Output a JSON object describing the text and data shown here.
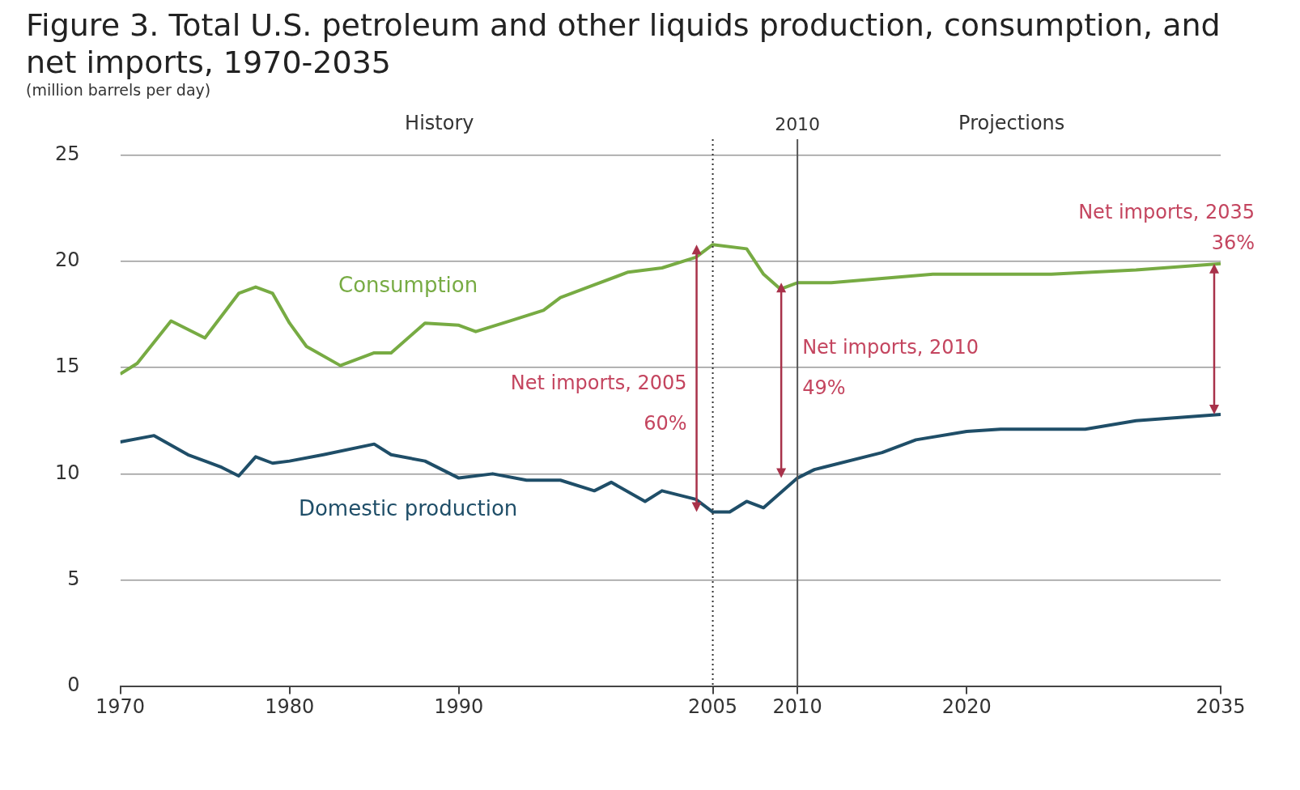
{
  "chart_data": {
    "type": "line",
    "title": "Figure 3. Total U.S. petroleum and other liquids production, consumption, and net imports, 1970-2035",
    "subtitle": "(million barrels per day)",
    "series": [
      {
        "name": "Consumption",
        "color": "#77ab43",
        "x": [
          1970,
          1971,
          1973,
          1975,
          1977,
          1978,
          1979,
          1980,
          1981,
          1983,
          1985,
          1986,
          1988,
          1990,
          1991,
          1993,
          1995,
          1996,
          1998,
          2000,
          2002,
          2004,
          2005,
          2007,
          2008,
          2009,
          2010,
          2012,
          2015,
          2018,
          2025,
          2030,
          2035
        ],
        "values": [
          14.7,
          15.2,
          17.2,
          16.4,
          18.5,
          18.8,
          18.5,
          17.1,
          16.0,
          15.1,
          15.7,
          15.7,
          17.1,
          17.0,
          16.7,
          17.2,
          17.7,
          18.3,
          18.9,
          19.5,
          19.7,
          20.2,
          20.8,
          20.6,
          19.4,
          18.7,
          19.0,
          19.0,
          19.2,
          19.4,
          19.4,
          19.6,
          19.9
        ]
      },
      {
        "name": "Domestic production",
        "color": "#1f4e68",
        "x": [
          1970,
          1972,
          1974,
          1976,
          1977,
          1978,
          1979,
          1980,
          1982,
          1985,
          1986,
          1988,
          1990,
          1992,
          1994,
          1996,
          1998,
          1999,
          2001,
          2002,
          2004,
          2005,
          2006,
          2007,
          2008,
          2010,
          2011,
          2015,
          2017,
          2020,
          2022,
          2027,
          2030,
          2035
        ],
        "values": [
          11.5,
          11.8,
          10.9,
          10.3,
          9.9,
          10.8,
          10.5,
          10.6,
          10.9,
          11.4,
          10.9,
          10.6,
          9.8,
          10.0,
          9.7,
          9.7,
          9.2,
          9.6,
          8.7,
          9.2,
          8.8,
          8.2,
          8.2,
          8.7,
          8.4,
          9.8,
          10.2,
          11.0,
          11.6,
          12.0,
          12.1,
          12.1,
          12.5,
          12.8
        ]
      }
    ],
    "xlim": [
      1970,
      2035
    ],
    "xticks": [
      1970,
      1980,
      1990,
      2005,
      2010,
      2020,
      2035
    ],
    "ylim": [
      0,
      25
    ],
    "yticks": [
      0,
      5,
      10,
      15,
      20,
      25
    ],
    "grid": "y",
    "marker": "none",
    "line_style": "solid",
    "ref_lines": [
      {
        "axis": "x",
        "value": 2005,
        "label": null,
        "line_style": "dotted",
        "color": "#333333"
      },
      {
        "axis": "x",
        "value": 2010,
        "label": "2010",
        "line_style": "solid",
        "color": "#555555"
      }
    ],
    "annotations": [
      "History",
      "Projections",
      {
        "text": "Net imports, 2005",
        "x": 2005,
        "y": 14.2
      },
      {
        "text": "60%",
        "x": 2005,
        "y": 12.3
      },
      {
        "text": "Net imports, 2010",
        "x": 2010,
        "y": 15.9
      },
      {
        "text": "49%",
        "x": 2010,
        "y": 14.0
      },
      {
        "text": "Net imports, 2035",
        "x": 2035,
        "y": 19.9
      },
      {
        "text": "36%",
        "x": 2035,
        "y": 19.9
      }
    ]
  }
}
